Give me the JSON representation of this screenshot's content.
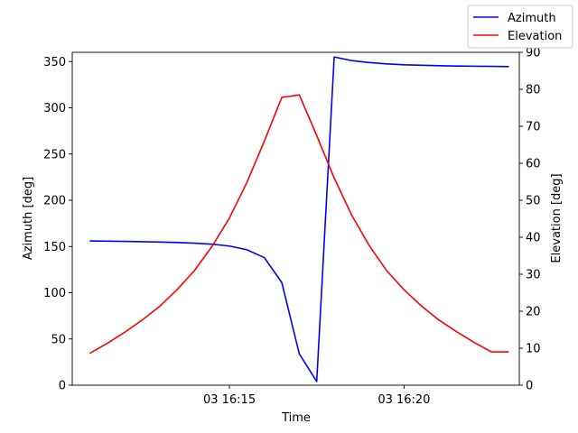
{
  "chart_data": {
    "type": "line",
    "title": "",
    "xlabel": "Time",
    "ylabel_left": "Azimuth [deg]",
    "ylabel_right": "Elevation [deg]",
    "x_ticks": [
      "03 16:15",
      "03 16:20"
    ],
    "x_tick_minutes": [
      15,
      20
    ],
    "xlim_minutes": [
      10.5,
      23.3
    ],
    "ylim_left": [
      0,
      360
    ],
    "ylim_right": [
      0,
      90
    ],
    "y_ticks_left": [
      "0",
      "50",
      "100",
      "150",
      "200",
      "250",
      "300",
      "350"
    ],
    "y_ticks_right": [
      "0",
      "10",
      "20",
      "30",
      "40",
      "50",
      "60",
      "70",
      "80",
      "90"
    ],
    "x_minutes": [
      11.0,
      11.5,
      12.0,
      12.5,
      13.0,
      13.5,
      14.0,
      14.5,
      15.0,
      15.5,
      16.0,
      16.5,
      17.0,
      17.5,
      18.0,
      18.5,
      19.0,
      19.5,
      20.0,
      20.5,
      21.0,
      21.5,
      22.0,
      22.5,
      23.0
    ],
    "grid": false,
    "legend_position": "top-right",
    "series": [
      {
        "name": "Azimuth",
        "axis": "left",
        "color": "#0000ff",
        "values": [
          156,
          155.8,
          155.5,
          155.2,
          154.8,
          154.3,
          153.6,
          152.5,
          150.5,
          146.5,
          138,
          111,
          34,
          4,
          355,
          351,
          349,
          347.5,
          346.5,
          346,
          345.5,
          345.2,
          345,
          344.8,
          344.6
        ]
      },
      {
        "name": "Elevation",
        "axis": "right",
        "color": "#ff0000",
        "values": [
          8.6,
          11.3,
          14.3,
          17.6,
          21.3,
          25.8,
          31.0,
          37.5,
          45.2,
          54.8,
          66.0,
          77.8,
          78.5,
          67.5,
          56.0,
          46.0,
          37.8,
          31.0,
          25.8,
          21.4,
          17.6,
          14.5,
          11.6,
          9.0,
          9.0
        ]
      }
    ]
  }
}
